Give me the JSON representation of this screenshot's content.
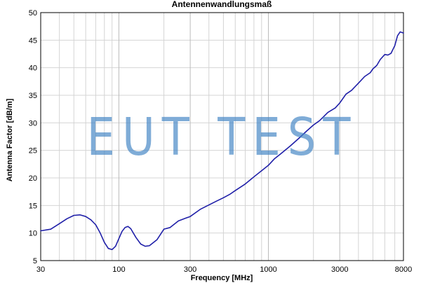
{
  "chart_data": {
    "type": "line",
    "title": "Antennenwandlungsmaß",
    "xlabel": "Frequency [MHz]",
    "ylabel": "Antenna Factor [dB/m]",
    "x_scale": "log",
    "xlim": [
      30,
      8000
    ],
    "ylim": [
      5,
      50
    ],
    "x_ticks": [
      30,
      100,
      300,
      1000,
      3000,
      8000
    ],
    "x_tick_labels": [
      "30",
      "100",
      "300",
      "1000",
      "3000",
      "8000"
    ],
    "y_ticks": [
      5,
      10,
      15,
      20,
      25,
      30,
      35,
      40,
      45,
      50
    ],
    "y_tick_labels": [
      "5",
      "10",
      "15",
      "20",
      "25",
      "30",
      "35",
      "40",
      "45",
      "50"
    ],
    "x_minor_ticks": [
      40,
      50,
      60,
      70,
      80,
      90,
      200,
      400,
      500,
      600,
      700,
      800,
      900,
      2000,
      4000,
      5000,
      6000,
      7000
    ],
    "grid": true,
    "series_color": "#1f1fa8",
    "series": [
      {
        "x": [
          30,
          35,
          40,
          45,
          50,
          55,
          60,
          65,
          70,
          75,
          80,
          85,
          90,
          95,
          100,
          105,
          110,
          115,
          120,
          130,
          140,
          150,
          160,
          180,
          200,
          220,
          250,
          280,
          300,
          350,
          400,
          450,
          500,
          550,
          600,
          700,
          800,
          900,
          1000,
          1100,
          1200,
          1400,
          1600,
          1800,
          2000,
          2200,
          2500,
          2800,
          3000,
          3300,
          3600,
          4000,
          4400,
          4800,
          5000,
          5300,
          5600,
          6000,
          6300,
          6600,
          7000,
          7300,
          7600,
          8000
        ],
        "y": [
          10.4,
          10.7,
          11.7,
          12.6,
          13.2,
          13.3,
          13.0,
          12.4,
          11.5,
          10.0,
          8.3,
          7.2,
          7.0,
          7.6,
          9.0,
          10.3,
          11.0,
          11.2,
          10.8,
          9.2,
          8.0,
          7.6,
          7.7,
          8.8,
          10.7,
          11.0,
          12.2,
          12.7,
          13.0,
          14.3,
          15.1,
          15.8,
          16.4,
          17.0,
          17.7,
          18.9,
          20.2,
          21.3,
          22.3,
          23.5,
          24.3,
          25.8,
          27.2,
          28.5,
          29.6,
          30.4,
          31.9,
          32.7,
          33.6,
          35.2,
          35.9,
          37.2,
          38.4,
          39.1,
          39.8,
          40.4,
          41.5,
          42.4,
          42.3,
          42.6,
          44.0,
          45.8,
          46.5,
          46.3
        ]
      }
    ]
  },
  "watermark_text": "EUT TEST"
}
